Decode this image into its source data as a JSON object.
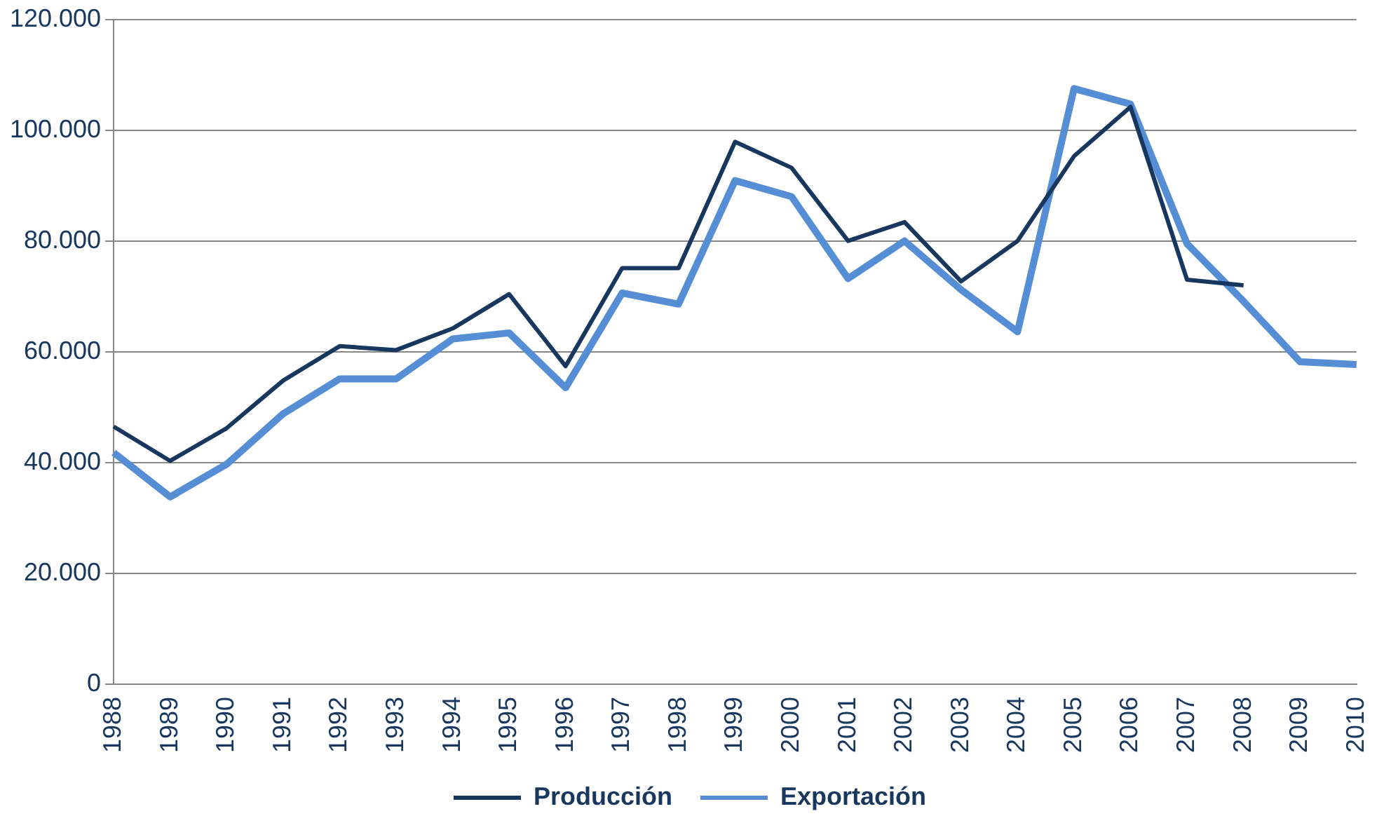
{
  "chart_data": {
    "type": "line",
    "categories": [
      "1988",
      "1989",
      "1990",
      "1991",
      "1992",
      "1993",
      "1994",
      "1995",
      "1996",
      "1997",
      "1998",
      "1999",
      "2000",
      "2001",
      "2002",
      "2003",
      "2004",
      "2005",
      "2006",
      "2007",
      "2008",
      "2009",
      "2010"
    ],
    "series": [
      {
        "name": "Producción",
        "color": "#17375e",
        "values": [
          46500,
          40300,
          46200,
          54800,
          61000,
          60300,
          64200,
          70400,
          57400,
          75100,
          75100,
          97900,
          93200,
          80000,
          83400,
          72700,
          80000,
          95300,
          104200,
          73000,
          72000,
          null,
          null
        ]
      },
      {
        "name": "Exportación",
        "color": "#558ed5",
        "values": [
          41800,
          33800,
          39700,
          48800,
          55100,
          55100,
          62300,
          63400,
          53500,
          70600,
          68600,
          90900,
          88000,
          73200,
          80000,
          71200,
          63600,
          107500,
          104700,
          79500,
          69100,
          58200,
          57700
        ]
      }
    ],
    "ylim": [
      0,
      120000
    ],
    "yticks": [
      {
        "value": 0,
        "label": "0"
      },
      {
        "value": 20000,
        "label": "20.000"
      },
      {
        "value": 40000,
        "label": "40.000"
      },
      {
        "value": 60000,
        "label": "60.000"
      },
      {
        "value": 80000,
        "label": "80.000"
      },
      {
        "value": 100000,
        "label": "100.000"
      },
      {
        "value": 120000,
        "label": "120.000"
      }
    ],
    "grid": "y",
    "legend": "bottom",
    "marker": "none",
    "line_style": "solid"
  }
}
